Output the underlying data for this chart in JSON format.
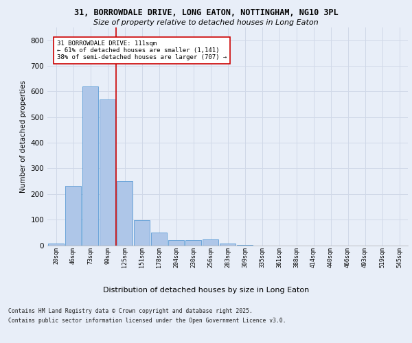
{
  "title1": "31, BORROWDALE DRIVE, LONG EATON, NOTTINGHAM, NG10 3PL",
  "title2": "Size of property relative to detached houses in Long Eaton",
  "xlabel": "Distribution of detached houses by size in Long Eaton",
  "ylabel": "Number of detached properties",
  "categories": [
    "20sqm",
    "46sqm",
    "73sqm",
    "99sqm",
    "125sqm",
    "151sqm",
    "178sqm",
    "204sqm",
    "230sqm",
    "256sqm",
    "283sqm",
    "309sqm",
    "335sqm",
    "361sqm",
    "388sqm",
    "414sqm",
    "440sqm",
    "466sqm",
    "493sqm",
    "519sqm",
    "545sqm"
  ],
  "values": [
    8,
    232,
    620,
    570,
    250,
    97,
    50,
    20,
    20,
    22,
    8,
    2,
    0,
    0,
    0,
    0,
    0,
    0,
    0,
    0,
    0
  ],
  "bar_color": "#aec6e8",
  "bar_edge_color": "#5b9bd5",
  "grid_color": "#d0d8e8",
  "vline_x_idx": 3,
  "vline_color": "#cc0000",
  "annotation_text": "31 BORROWDALE DRIVE: 111sqm\n← 61% of detached houses are smaller (1,141)\n38% of semi-detached houses are larger (707) →",
  "annotation_box_color": "#ffffff",
  "annotation_box_edge": "#cc0000",
  "footer1": "Contains HM Land Registry data © Crown copyright and database right 2025.",
  "footer2": "Contains public sector information licensed under the Open Government Licence v3.0.",
  "ylim": [
    0,
    850
  ],
  "yticks": [
    0,
    100,
    200,
    300,
    400,
    500,
    600,
    700,
    800
  ],
  "background_color": "#e8eef8",
  "plot_bg_color": "#e8eef8"
}
